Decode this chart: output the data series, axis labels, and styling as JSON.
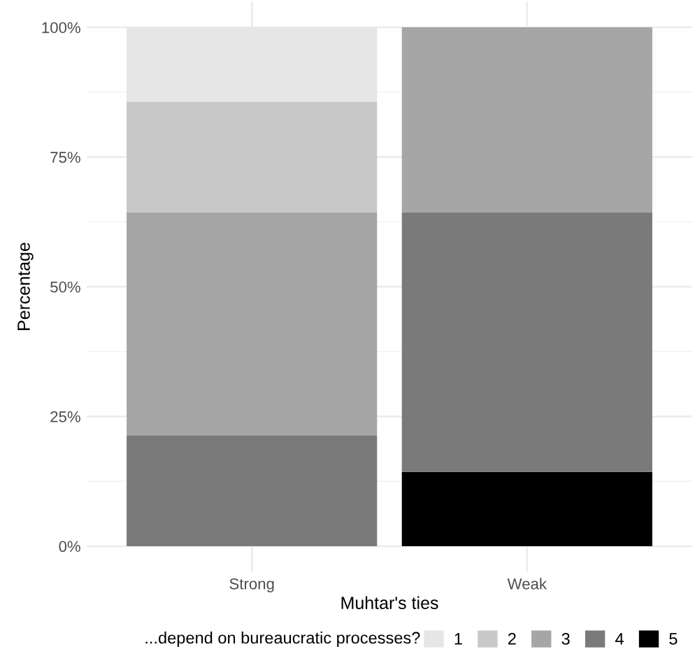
{
  "chart_data": {
    "type": "bar",
    "stacked": true,
    "xlabel": "Muhtar's ties",
    "ylabel": "Percentage",
    "legend_title": "...depend on bureaucratic processes?",
    "categories": [
      "Strong",
      "Weak"
    ],
    "series": [
      {
        "name": "5",
        "color": "#000000",
        "values": [
          0,
          14.3
        ]
      },
      {
        "name": "4",
        "color": "#7a7a7a",
        "values": [
          21.4,
          50
        ]
      },
      {
        "name": "3",
        "color": "#a6a6a6",
        "values": [
          42.9,
          35.7
        ]
      },
      {
        "name": "2",
        "color": "#c8c8c8",
        "values": [
          21.4,
          0
        ]
      },
      {
        "name": "1",
        "color": "#e6e6e6",
        "values": [
          14.3,
          0
        ]
      }
    ],
    "ylim": [
      -5,
      105
    ],
    "yticks": [
      {
        "value": 0,
        "label": "0%"
      },
      {
        "value": 25,
        "label": "25%"
      },
      {
        "value": 50,
        "label": "50%"
      },
      {
        "value": 75,
        "label": "75%"
      },
      {
        "value": 100,
        "label": "100%"
      }
    ],
    "grid": true,
    "legend": "bottom"
  }
}
